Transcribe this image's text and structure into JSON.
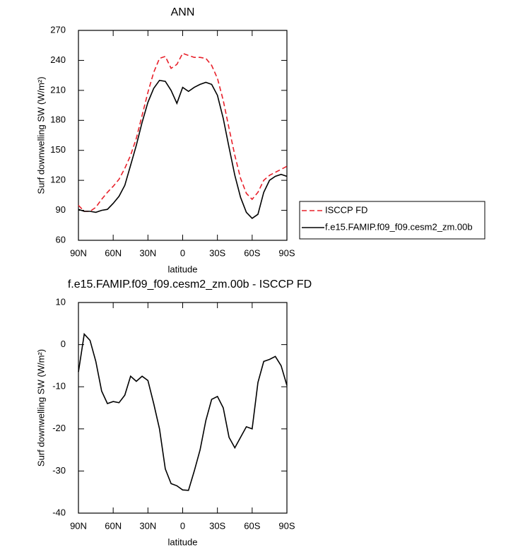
{
  "chart_data": [
    {
      "type": "line",
      "title": "ANN",
      "x_label": "latitude",
      "y_label": "Surf downwelling SW (W/m²)",
      "x": [
        90,
        85,
        80,
        75,
        70,
        65,
        60,
        55,
        50,
        45,
        40,
        35,
        30,
        25,
        20,
        15,
        10,
        5,
        0,
        -5,
        -10,
        -15,
        -20,
        -25,
        -30,
        -35,
        -40,
        -45,
        -50,
        -55,
        -60,
        -65,
        -70,
        -75,
        -80,
        -85,
        -90
      ],
      "series": [
        {
          "name": "ISCCP FD",
          "color": "#e8202a",
          "dash": true,
          "values": [
            95,
            89,
            89,
            93,
            101,
            108,
            114,
            121,
            132,
            145,
            162,
            185,
            208,
            228,
            242,
            244,
            232,
            236,
            247,
            245,
            243,
            243,
            242,
            235,
            222,
            200,
            172,
            145,
            122,
            107,
            101,
            108,
            120,
            125,
            128,
            131,
            134
          ]
        },
        {
          "name": "f.e15.FAMIP.f09_f09.cesm2_zm.00b",
          "color": "#000000",
          "dash": false,
          "values": [
            91,
            89,
            89,
            88,
            90,
            91,
            97,
            104,
            115,
            135,
            155,
            178,
            198,
            212,
            220,
            219,
            210,
            197,
            213,
            209,
            213,
            216,
            218,
            216,
            205,
            182,
            153,
            125,
            103,
            88,
            82,
            86,
            108,
            120,
            124,
            126,
            124
          ]
        }
      ],
      "xlim": [
        90,
        -90
      ],
      "xticks": [
        {
          "value": 90,
          "label": "90N"
        },
        {
          "value": 60,
          "label": "60N"
        },
        {
          "value": 30,
          "label": "30N"
        },
        0,
        {
          "value": -30,
          "label": "30S"
        },
        {
          "value": -60,
          "label": "60S"
        },
        {
          "value": -90,
          "label": "90S"
        }
      ],
      "ylim": [
        60,
        270
      ],
      "yticks": [
        60,
        90,
        120,
        150,
        180,
        210,
        240,
        270
      ],
      "legend": "right"
    },
    {
      "type": "line",
      "title": "f.e15.FAMIP.f09_f09.cesm2_zm.00b - ISCCP FD",
      "x_label": "latitude",
      "y_label": "Surf downwelling SW (W/m²)",
      "x": [
        90,
        85,
        80,
        75,
        70,
        65,
        60,
        55,
        50,
        45,
        40,
        35,
        30,
        25,
        20,
        15,
        10,
        5,
        0,
        -5,
        -10,
        -15,
        -20,
        -25,
        -30,
        -35,
        -40,
        -45,
        -50,
        -55,
        -60,
        -65,
        -70,
        -75,
        -80,
        -85,
        -90
      ],
      "values": [
        -6.5,
        2.5,
        1,
        -4,
        -11,
        -14,
        -13.5,
        -13.8,
        -12,
        -7.5,
        -8.7,
        -7.5,
        -8.5,
        -14,
        -20,
        -29.5,
        -33,
        -33.5,
        -34.5,
        -34.6,
        -30,
        -25,
        -18,
        -13,
        -12.3,
        -15,
        -22,
        -24.5,
        -22,
        -19.5,
        -20,
        -9,
        -4,
        -3.5,
        -2.8,
        -5,
        -9.7
      ],
      "color": "#000000",
      "xlim": [
        90,
        -90
      ],
      "xticks": [
        {
          "value": 90,
          "label": "90N"
        },
        {
          "value": 60,
          "label": "60N"
        },
        {
          "value": 30,
          "label": "30N"
        },
        0,
        {
          "value": -30,
          "label": "30S"
        },
        {
          "value": -60,
          "label": "60S"
        },
        {
          "value": -90,
          "label": "90S"
        }
      ],
      "ylim": [
        -40,
        10
      ],
      "yticks": [
        -40,
        -30,
        -20,
        -10,
        0,
        10
      ]
    }
  ]
}
